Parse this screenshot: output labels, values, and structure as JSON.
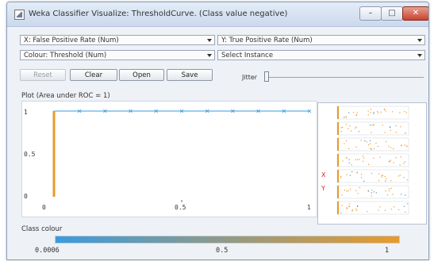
{
  "window": {
    "title": "Weka Classifier Visualize: ThresholdCurve. (Class value negative)"
  },
  "controls": {
    "x_axis": "X: False Positive Rate (Num)",
    "y_axis": "Y: True Positive Rate (Num)",
    "colour": "Colour: Threshold (Num)",
    "select_instance": "Select Instance",
    "buttons": {
      "reset": "Reset",
      "clear": "Clear",
      "open": "Open",
      "save": "Save"
    },
    "jitter_label": "Jitter"
  },
  "plot": {
    "title": "Plot (Area under ROC = 1)",
    "x_ticks": [
      "0",
      "0.5",
      "1"
    ],
    "y_ticks": [
      "1",
      "0.5",
      "0"
    ]
  },
  "chart_data": {
    "type": "line",
    "title": "Plot (Area under ROC = 1)",
    "xlabel": "False Positive Rate",
    "ylabel": "True Positive Rate",
    "xlim": [
      0,
      1
    ],
    "ylim": [
      0,
      1
    ],
    "x_ticks": [
      "0",
      "0.5",
      "1"
    ],
    "y_ticks": [
      "0",
      "0.5",
      "1"
    ],
    "series": [
      {
        "x": [
          0,
          0,
          0.1,
          0.2,
          0.3,
          0.4,
          0.5,
          0.6,
          0.7,
          0.8,
          0.9,
          1.0
        ],
        "y": [
          0,
          1,
          1,
          1,
          1,
          1,
          1,
          1,
          1,
          1,
          1,
          1
        ]
      }
    ]
  },
  "side_panel": {
    "x_marker": "X",
    "y_marker": "Y"
  },
  "class_colour": {
    "label": "Class colour",
    "ticks": [
      "0.0006",
      "0.5",
      "1"
    ]
  },
  "colors": {
    "low": "#3a9be0",
    "high": "#e99a2a"
  }
}
